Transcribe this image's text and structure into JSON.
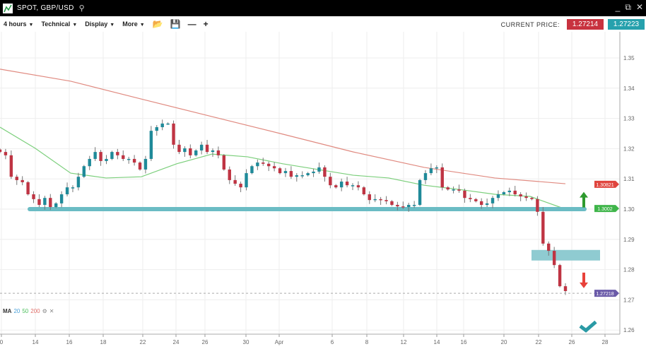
{
  "window": {
    "title": "SPOT, GBP/USD",
    "icons": [
      "chart-logo-icon",
      "search-icon",
      "minimize-icon",
      "popout-icon",
      "close-icon"
    ]
  },
  "toolbar": {
    "interval": "4 hours",
    "technical": "Technical",
    "display": "Display",
    "more": "More",
    "current_price_label": "CURRENT PRICE:",
    "bid": "1.27214",
    "ask": "1.27223"
  },
  "colors": {
    "up": "#1f8a99",
    "down": "#bf3443",
    "ma50": "#7ccf7c",
    "ma200": "#e08a80",
    "support": "#6bbcc4",
    "bid": "#c8323f",
    "ask": "#26a1ad"
  },
  "legend": {
    "label": "MA",
    "p1": "20",
    "p2": "50",
    "p3": "200"
  },
  "chart_data": {
    "type": "candlestick",
    "x_ticks": [
      "0",
      "14",
      "16",
      "18",
      "22",
      "24",
      "26",
      "30",
      "Apr",
      "6",
      "8",
      "12",
      "14",
      "16",
      "20",
      "22",
      "26",
      "28"
    ],
    "y_ticks": [
      "1.35",
      "1.34",
      "1.33",
      "1.32",
      "1.31",
      "1.30",
      "1.29",
      "1.28",
      "1.27",
      "1.26"
    ],
    "ylim": [
      1.2537,
      1.3594
    ],
    "closes": [
      1.3189,
      1.3178,
      1.3107,
      1.3096,
      1.3089,
      1.3049,
      1.3033,
      1.3014,
      1.3037,
      1.3007,
      1.3019,
      1.3049,
      1.3072,
      1.3072,
      1.3107,
      1.3142,
      1.3166,
      1.3189,
      1.3159,
      1.3166,
      1.3189,
      1.3178,
      1.3166,
      1.3166,
      1.3154,
      1.3131,
      1.3166,
      1.3259,
      1.3271,
      1.3283,
      1.3283,
      1.3213,
      1.3189,
      1.3201,
      1.3178,
      1.3194,
      1.3213,
      1.3189,
      1.3194,
      1.3178,
      1.3131,
      1.3096,
      1.3084,
      1.3072,
      1.3119,
      1.3142,
      1.3154,
      1.315,
      1.3142,
      1.3135,
      1.3119,
      1.3126,
      1.3107,
      1.3112,
      1.3112,
      1.3119,
      1.3124,
      1.3138,
      1.3107,
      1.3079,
      1.3072,
      1.3091,
      1.3079,
      1.3079,
      1.3072,
      1.3049,
      1.303,
      1.3033,
      1.303,
      1.3026,
      1.3014,
      1.3009,
      1.3007,
      1.3014,
      1.3014,
      1.3096,
      1.3119,
      1.3135,
      1.3138,
      1.3072,
      1.3065,
      1.3065,
      1.3061,
      1.3037,
      1.3033,
      1.3026,
      1.3014,
      1.3019,
      1.3037,
      1.3049,
      1.3056,
      1.3061,
      1.3049,
      1.3042,
      1.3037,
      1.3033,
      1.2991,
      1.2886,
      1.2862,
      1.2815,
      1.2745,
      1.2729
    ],
    "ma200": [
      1.3463,
      1.3423,
      1.3364,
      1.3306,
      1.3248,
      1.3189,
      1.3138,
      1.3103,
      1.3084
    ],
    "ma50": [
      1.3271,
      1.3201,
      1.3119,
      1.3103,
      1.3107,
      1.315,
      1.3182,
      1.3173,
      1.315,
      1.3131,
      1.3112,
      1.3103,
      1.3079,
      1.3065,
      1.3049,
      1.3042,
      1.3
    ],
    "support_level": 1.3,
    "zone": [
      1.283,
      1.2865
    ],
    "price_labels": {
      "ma200": "1.30821",
      "support": "1.3002",
      "last": "1.27218"
    },
    "last_price": 1.27218,
    "annotations": [
      "up-arrow-icon",
      "down-arrow-icon",
      "checkmark-icon"
    ]
  }
}
